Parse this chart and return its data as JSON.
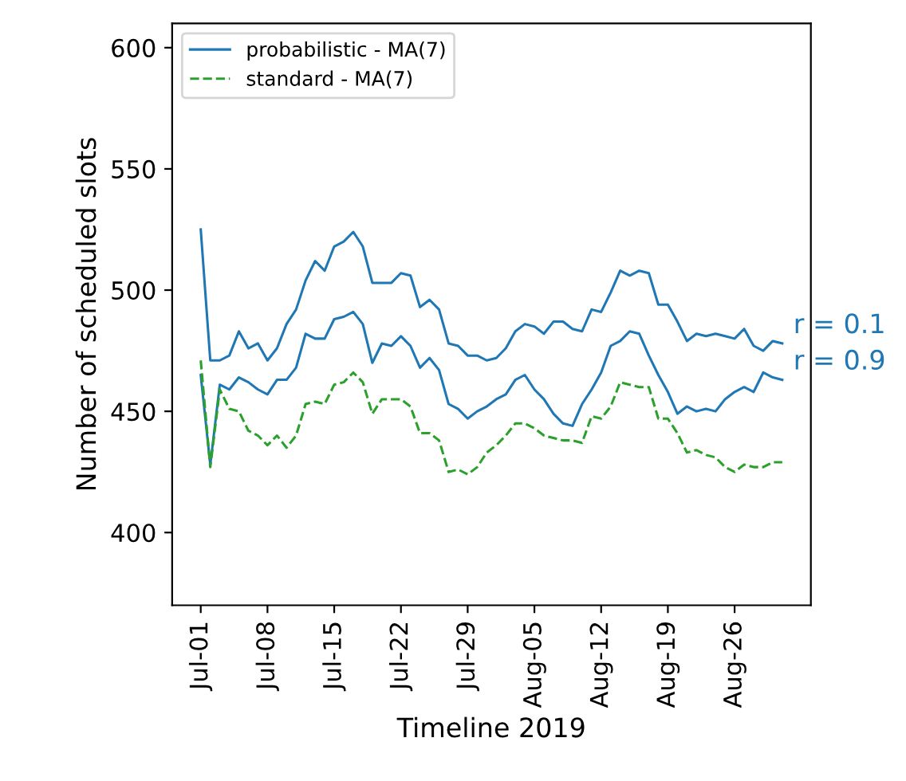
{
  "chart_data": {
    "type": "line",
    "xlabel": "Timeline 2019",
    "ylabel": "Number of scheduled slots",
    "x": [
      "2019-07-01",
      "2019-07-02",
      "2019-07-03",
      "2019-07-04",
      "2019-07-05",
      "2019-07-06",
      "2019-07-07",
      "2019-07-08",
      "2019-07-09",
      "2019-07-10",
      "2019-07-11",
      "2019-07-12",
      "2019-07-13",
      "2019-07-14",
      "2019-07-15",
      "2019-07-16",
      "2019-07-17",
      "2019-07-18",
      "2019-07-19",
      "2019-07-20",
      "2019-07-21",
      "2019-07-22",
      "2019-07-23",
      "2019-07-24",
      "2019-07-25",
      "2019-07-26",
      "2019-07-27",
      "2019-07-28",
      "2019-07-29",
      "2019-07-30",
      "2019-07-31",
      "2019-08-01",
      "2019-08-02",
      "2019-08-03",
      "2019-08-04",
      "2019-08-05",
      "2019-08-06",
      "2019-08-07",
      "2019-08-08",
      "2019-08-09",
      "2019-08-10",
      "2019-08-11",
      "2019-08-12",
      "2019-08-13",
      "2019-08-14",
      "2019-08-15",
      "2019-08-16",
      "2019-08-17",
      "2019-08-18",
      "2019-08-19",
      "2019-08-20",
      "2019-08-21",
      "2019-08-22",
      "2019-08-23",
      "2019-08-24",
      "2019-08-25",
      "2019-08-26",
      "2019-08-27",
      "2019-08-28",
      "2019-08-29",
      "2019-08-30",
      "2019-08-31"
    ],
    "series": [
      {
        "name": "probabilistic - MA(7)",
        "color": "#1f77b4",
        "line_style": "solid",
        "values": [
          525,
          471,
          471,
          473,
          483,
          476,
          478,
          471,
          476,
          486,
          492,
          504,
          512,
          508,
          518,
          520,
          524,
          518,
          503,
          503,
          503,
          507,
          506,
          493,
          496,
          492,
          478,
          477,
          473,
          473,
          471,
          472,
          476,
          483,
          486,
          485,
          482,
          487,
          487,
          484,
          483,
          492,
          491,
          499,
          508,
          506,
          508,
          507,
          494,
          494,
          487,
          479,
          482,
          481,
          482,
          481,
          480,
          484,
          477,
          475,
          479,
          478
        ]
      },
      {
        "color": "#1f77b4",
        "line_style": "solid",
        "values": [
          465,
          428,
          461,
          459,
          464,
          462,
          459,
          457,
          463,
          463,
          468,
          482,
          480,
          480,
          488,
          489,
          491,
          486,
          470,
          478,
          477,
          481,
          477,
          468,
          472,
          467,
          453,
          451,
          447,
          450,
          452,
          455,
          457,
          463,
          465,
          459,
          455,
          449,
          445,
          444,
          453,
          459,
          466,
          477,
          479,
          483,
          482,
          473,
          465,
          458,
          449,
          452,
          450,
          451,
          450,
          455,
          458,
          460,
          458,
          466,
          464,
          463
        ]
      },
      {
        "name": "standard - MA(7)",
        "color": "#2ca02c",
        "line_style": "dashed",
        "values": [
          471,
          427,
          459,
          451,
          450,
          442,
          440,
          436,
          440,
          435,
          440,
          453,
          454,
          453,
          461,
          462,
          466,
          462,
          449,
          455,
          455,
          455,
          452,
          441,
          441,
          438,
          425,
          426,
          424,
          427,
          433,
          436,
          440,
          445,
          445,
          443,
          440,
          439,
          438,
          438,
          437,
          448,
          447,
          452,
          462,
          461,
          460,
          460,
          447,
          447,
          441,
          433,
          434,
          432,
          431,
          427,
          425,
          428,
          427,
          427,
          429,
          429
        ]
      }
    ],
    "annotations": [
      {
        "text": "r = 0.1",
        "x": "2019-08-31",
        "y": 478
      },
      {
        "text": "r = 0.9",
        "x": "2019-08-31",
        "y": 463
      }
    ],
    "xlim": [
      "2019-06-28",
      "2019-09-03"
    ],
    "xticks": [
      {
        "value": "2019-07-01",
        "label": "Jul-01"
      },
      {
        "value": "2019-07-08",
        "label": "Jul-08"
      },
      {
        "value": "2019-07-15",
        "label": "Jul-15"
      },
      {
        "value": "2019-07-22",
        "label": "Jul-22"
      },
      {
        "value": "2019-07-29",
        "label": "Jul-29"
      },
      {
        "value": "2019-08-05",
        "label": "Aug-05"
      },
      {
        "value": "2019-08-12",
        "label": "Aug-12"
      },
      {
        "value": "2019-08-19",
        "label": "Aug-19"
      },
      {
        "value": "2019-08-26",
        "label": "Aug-26"
      }
    ],
    "ylim": [
      370,
      610
    ],
    "yticks": [
      400,
      450,
      500,
      550,
      600
    ],
    "grid": false,
    "legend": "top left",
    "marker": "none"
  }
}
